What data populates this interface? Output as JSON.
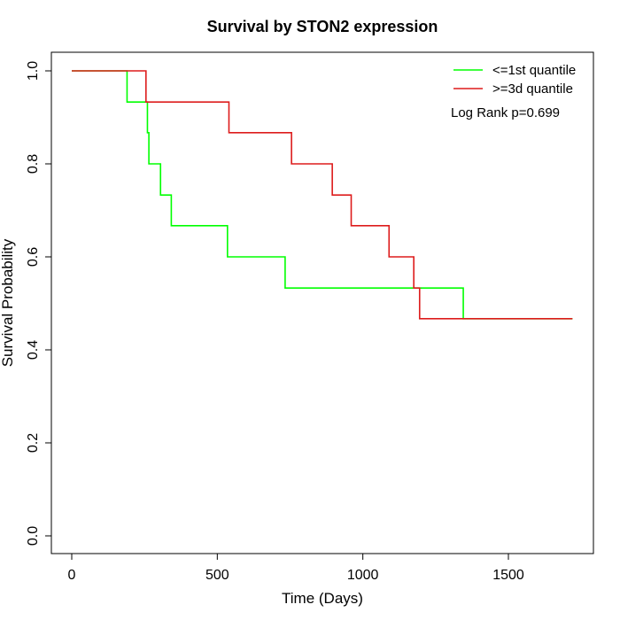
{
  "chart_data": {
    "type": "line",
    "title": "Survival by STON2 expression",
    "xlabel": "Time (Days)",
    "ylabel": "Survival Probability",
    "xlim": [
      0,
      1750
    ],
    "ylim": [
      0,
      1.0
    ],
    "xticks": [
      0,
      500,
      1000,
      1500
    ],
    "xtick_labels": [
      "0",
      "500",
      "1000",
      "1500"
    ],
    "yticks": [
      0.0,
      0.2,
      0.4,
      0.6,
      0.8,
      1.0
    ],
    "ytick_labels": [
      "0.0",
      "0.2",
      "0.4",
      "0.6",
      "0.8",
      "1.0"
    ],
    "grid": false,
    "legend_position": "top-right",
    "annotation": "Log Rank p=0.699",
    "series": [
      {
        "name": "<=1st quantile",
        "color": "#00ff00",
        "step": "post",
        "x": [
          0,
          190,
          260,
          265,
          305,
          342,
          535,
          733,
          1345,
          1720
        ],
        "y": [
          1.0,
          0.933,
          0.867,
          0.8,
          0.733,
          0.667,
          0.6,
          0.533,
          0.467,
          0.467
        ]
      },
      {
        "name": ">=3d quantile",
        "color": "#dd1c1c",
        "step": "post",
        "x": [
          0,
          255,
          540,
          755,
          895,
          960,
          1090,
          1175,
          1195,
          1720
        ],
        "y": [
          1.0,
          0.933,
          0.867,
          0.8,
          0.733,
          0.667,
          0.6,
          0.533,
          0.467,
          0.467
        ]
      }
    ]
  }
}
